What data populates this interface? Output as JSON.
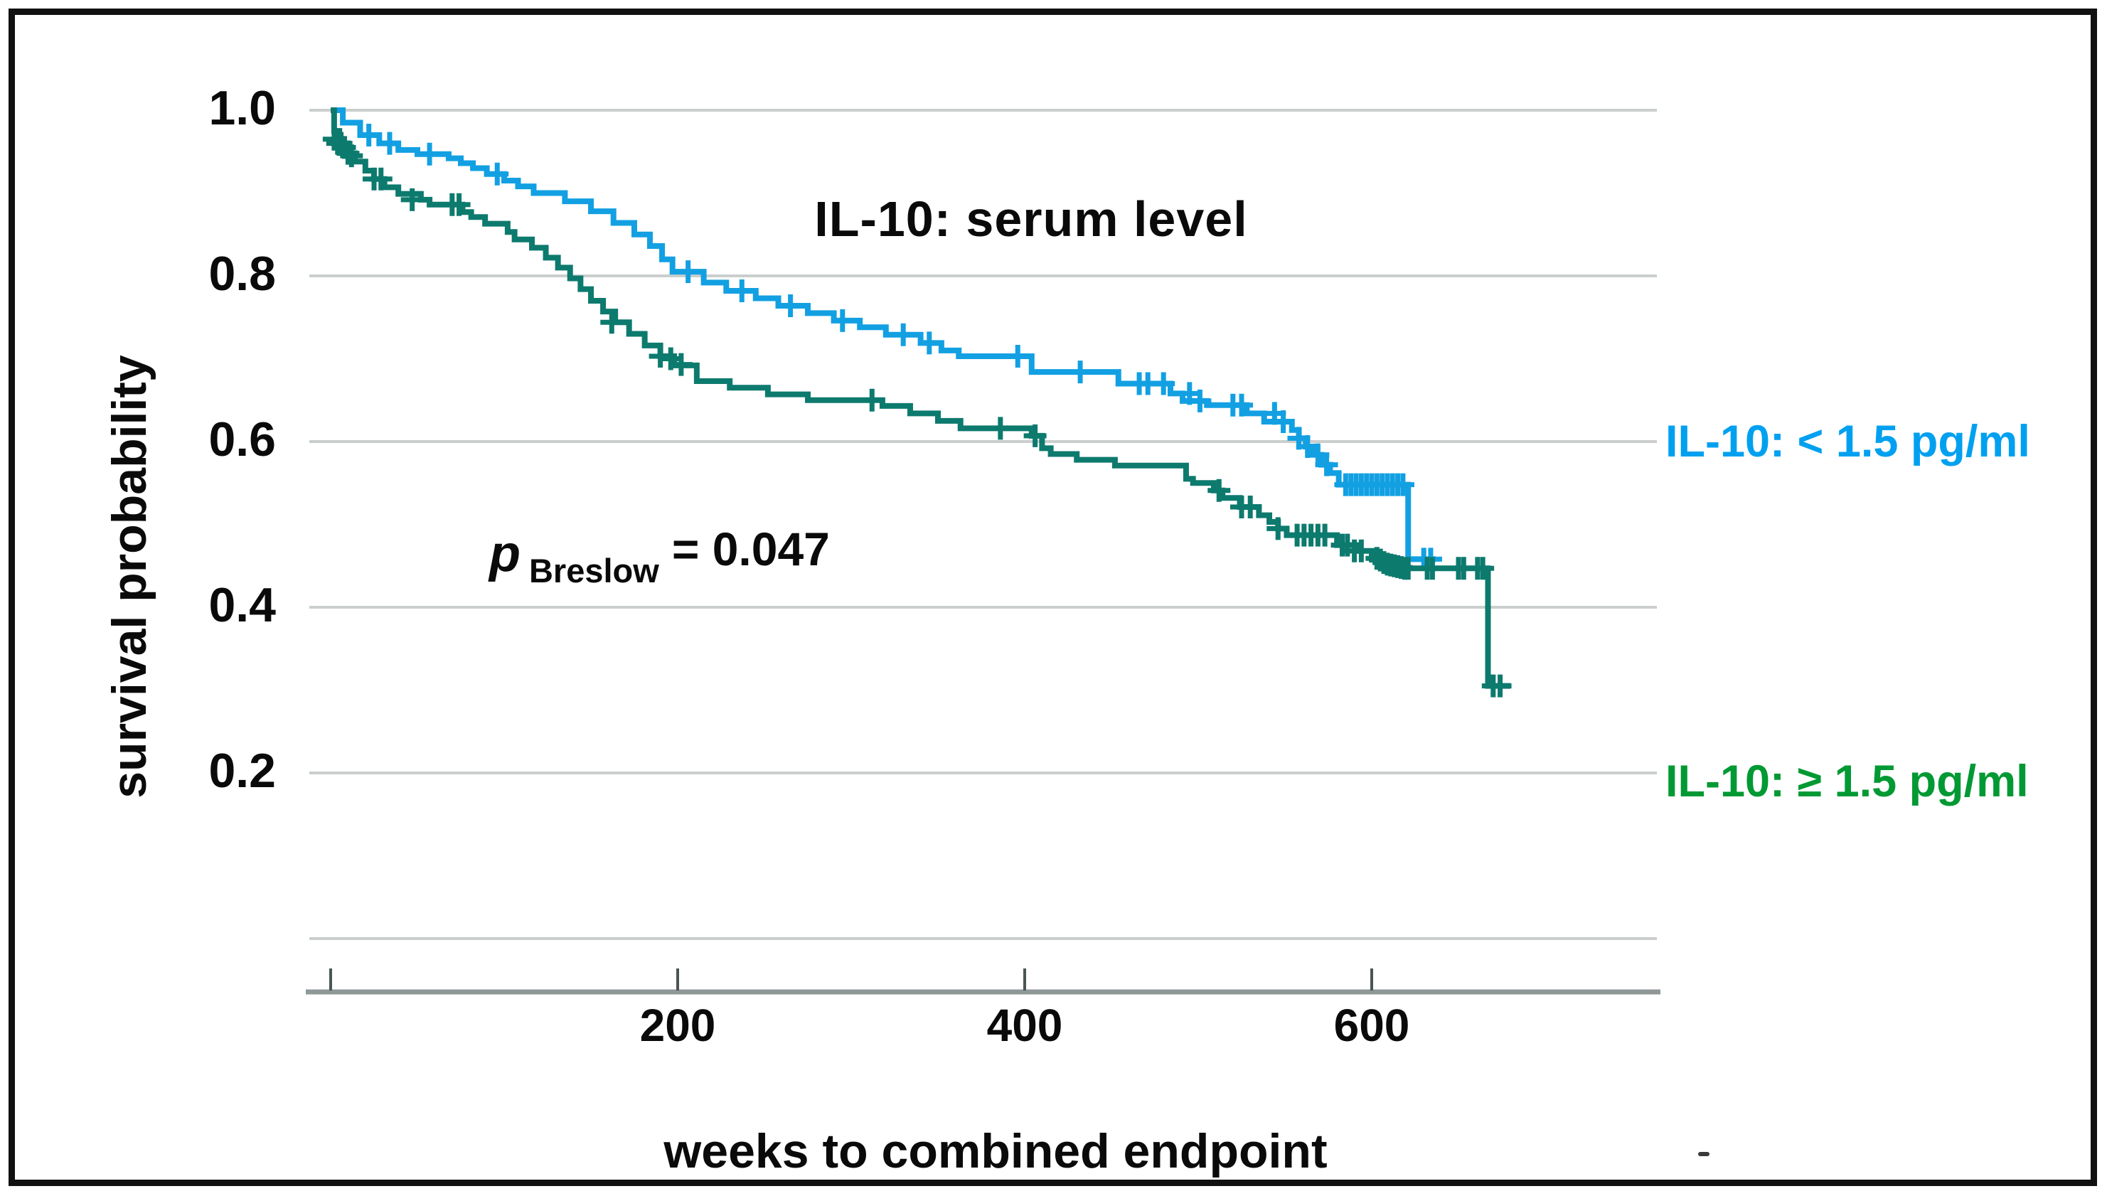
{
  "chart_data": {
    "type": "line",
    "subtype": "kaplan-meier-step",
    "title": "IL-10: serum level",
    "xlabel": "weeks to combined endpoint",
    "ylabel": "survival probability",
    "xlim": [
      0,
      764
    ],
    "ylim": [
      0.0,
      1.05
    ],
    "grid": "horizontal-only",
    "legend_position": "right-outside",
    "x_ticks": [
      {
        "t": 0,
        "label": ""
      },
      {
        "t": 200,
        "label": "200"
      },
      {
        "t": 400,
        "label": "400"
      },
      {
        "t": 600,
        "label": "600"
      }
    ],
    "y_ticks": [
      {
        "v": 1.0,
        "label": "1.0"
      },
      {
        "v": 0.8,
        "label": "0.8"
      },
      {
        "v": 0.6,
        "label": "0.6"
      },
      {
        "v": 0.4,
        "label": "0.4"
      },
      {
        "v": 0.2,
        "label": "0.2"
      },
      {
        "v": 0.0,
        "label": ""
      }
    ],
    "annotation": {
      "p_symbol": "p",
      "p_subscript": "Breslow",
      "p_value": "= 0.047"
    },
    "colors": {
      "grid": "#cacecd",
      "axis": "#8f9797",
      "tick": "#4a5555",
      "text": "#0a0a0a"
    },
    "series": [
      {
        "name": "IL-10: < 1.5 pg/ml",
        "group": "IL-10 below 1.5 pg/ml",
        "color": "#12a0e2",
        "label_color": "#00a0f0",
        "end_week": 637,
        "steps": [
          [
            0,
            1.0
          ],
          [
            7,
            0.985
          ],
          [
            17,
            0.97
          ],
          [
            28,
            0.96
          ],
          [
            39,
            0.952
          ],
          [
            50,
            0.947
          ],
          [
            68,
            0.942
          ],
          [
            75,
            0.936
          ],
          [
            82,
            0.93
          ],
          [
            90,
            0.923
          ],
          [
            100,
            0.915
          ],
          [
            108,
            0.908
          ],
          [
            117,
            0.9
          ],
          [
            135,
            0.89
          ],
          [
            150,
            0.878
          ],
          [
            163,
            0.864
          ],
          [
            175,
            0.85
          ],
          [
            184,
            0.836
          ],
          [
            191,
            0.82
          ],
          [
            197,
            0.805
          ],
          [
            215,
            0.792
          ],
          [
            228,
            0.782
          ],
          [
            245,
            0.773
          ],
          [
            258,
            0.764
          ],
          [
            275,
            0.755
          ],
          [
            290,
            0.746
          ],
          [
            305,
            0.738
          ],
          [
            320,
            0.729
          ],
          [
            340,
            0.719
          ],
          [
            352,
            0.71
          ],
          [
            362,
            0.703
          ],
          [
            404,
            0.684
          ],
          [
            454,
            0.67
          ],
          [
            484,
            0.658
          ],
          [
            491,
            0.649
          ],
          [
            505,
            0.644
          ],
          [
            528,
            0.634
          ],
          [
            538,
            0.624
          ],
          [
            554,
            0.614
          ],
          [
            558,
            0.604
          ],
          [
            562,
            0.594
          ],
          [
            566,
            0.584
          ],
          [
            571,
            0.572
          ],
          [
            576,
            0.562
          ],
          [
            581,
            0.548
          ],
          [
            621,
            0.458
          ]
        ],
        "censors": [
          [
            22,
            0.97
          ],
          [
            34,
            0.96
          ],
          [
            57,
            0.947
          ],
          [
            96,
            0.923
          ],
          [
            206,
            0.805
          ],
          [
            237,
            0.782
          ],
          [
            265,
            0.764
          ],
          [
            295,
            0.746
          ],
          [
            330,
            0.729
          ],
          [
            345,
            0.719
          ],
          [
            396,
            0.703
          ],
          [
            432,
            0.684
          ],
          [
            466,
            0.67
          ],
          [
            471,
            0.67
          ],
          [
            480,
            0.67
          ],
          [
            495,
            0.658
          ],
          [
            501,
            0.649
          ],
          [
            520,
            0.644
          ],
          [
            525,
            0.644
          ],
          [
            544,
            0.634
          ],
          [
            549,
            0.624
          ],
          [
            558,
            0.604
          ],
          [
            563,
            0.594
          ],
          [
            569,
            0.584
          ],
          [
            574,
            0.572
          ],
          [
            585,
            0.548
          ],
          [
            588,
            0.548
          ],
          [
            591,
            0.548
          ],
          [
            594,
            0.548
          ],
          [
            597,
            0.548
          ],
          [
            600,
            0.548
          ],
          [
            603,
            0.548
          ],
          [
            606,
            0.548
          ],
          [
            609,
            0.548
          ],
          [
            612,
            0.548
          ],
          [
            615,
            0.548
          ],
          [
            618,
            0.548
          ],
          [
            630,
            0.458
          ],
          [
            634,
            0.458
          ]
        ]
      },
      {
        "name": "IL-10: ≥ 1.5 pg/ml",
        "group": "IL-10 at or above 1.5 pg/ml",
        "color": "#0d7a6e",
        "label_color": "#009933",
        "end_week": 680,
        "steps": [
          [
            0,
            1.0
          ],
          [
            2,
            0.975
          ],
          [
            5,
            0.96
          ],
          [
            10,
            0.948
          ],
          [
            14,
            0.938
          ],
          [
            20,
            0.927
          ],
          [
            25,
            0.917
          ],
          [
            31,
            0.907
          ],
          [
            39,
            0.899
          ],
          [
            52,
            0.892
          ],
          [
            57,
            0.886
          ],
          [
            76,
            0.877
          ],
          [
            81,
            0.871
          ],
          [
            89,
            0.863
          ],
          [
            102,
            0.853
          ],
          [
            106,
            0.844
          ],
          [
            116,
            0.834
          ],
          [
            124,
            0.822
          ],
          [
            131,
            0.81
          ],
          [
            138,
            0.797
          ],
          [
            144,
            0.784
          ],
          [
            150,
            0.77
          ],
          [
            157,
            0.757
          ],
          [
            164,
            0.744
          ],
          [
            172,
            0.73
          ],
          [
            181,
            0.716
          ],
          [
            190,
            0.703
          ],
          [
            198,
            0.692
          ],
          [
            211,
            0.673
          ],
          [
            230,
            0.665
          ],
          [
            252,
            0.657
          ],
          [
            275,
            0.65
          ],
          [
            318,
            0.643
          ],
          [
            334,
            0.634
          ],
          [
            350,
            0.625
          ],
          [
            363,
            0.616
          ],
          [
            404,
            0.607
          ],
          [
            410,
            0.592
          ],
          [
            415,
            0.585
          ],
          [
            430,
            0.578
          ],
          [
            452,
            0.571
          ],
          [
            493,
            0.555
          ],
          [
            497,
            0.55
          ],
          [
            509,
            0.541
          ],
          [
            514,
            0.532
          ],
          [
            524,
            0.521
          ],
          [
            535,
            0.511
          ],
          [
            541,
            0.503
          ],
          [
            546,
            0.495
          ],
          [
            551,
            0.487
          ],
          [
            580,
            0.475
          ],
          [
            592,
            0.468
          ],
          [
            600,
            0.461
          ],
          [
            604,
            0.458
          ],
          [
            608,
            0.455
          ],
          [
            612,
            0.452
          ],
          [
            616,
            0.449
          ],
          [
            620,
            0.447
          ],
          [
            667,
            0.305
          ]
        ],
        "censors": [
          [
            2,
            0.965
          ],
          [
            4,
            0.96
          ],
          [
            6,
            0.96
          ],
          [
            8,
            0.955
          ],
          [
            10,
            0.948
          ],
          [
            12,
            0.945
          ],
          [
            25,
            0.917
          ],
          [
            29,
            0.917
          ],
          [
            47,
            0.892
          ],
          [
            70,
            0.886
          ],
          [
            74,
            0.886
          ],
          [
            162,
            0.744
          ],
          [
            190,
            0.703
          ],
          [
            196,
            0.7
          ],
          [
            202,
            0.693
          ],
          [
            312,
            0.65
          ],
          [
            386,
            0.616
          ],
          [
            406,
            0.607
          ],
          [
            512,
            0.541
          ],
          [
            525,
            0.521
          ],
          [
            530,
            0.521
          ],
          [
            546,
            0.495
          ],
          [
            557,
            0.487
          ],
          [
            561,
            0.487
          ],
          [
            565,
            0.487
          ],
          [
            569,
            0.487
          ],
          [
            573,
            0.487
          ],
          [
            583,
            0.475
          ],
          [
            586,
            0.475
          ],
          [
            590,
            0.468
          ],
          [
            594,
            0.468
          ],
          [
            603,
            0.459
          ],
          [
            605,
            0.457
          ],
          [
            607,
            0.454
          ],
          [
            609,
            0.452
          ],
          [
            611,
            0.451
          ],
          [
            613,
            0.45
          ],
          [
            615,
            0.449
          ],
          [
            617,
            0.448
          ],
          [
            619,
            0.447
          ],
          [
            621,
            0.447
          ],
          [
            632,
            0.447
          ],
          [
            635,
            0.447
          ],
          [
            650,
            0.447
          ],
          [
            653,
            0.447
          ],
          [
            661,
            0.447
          ],
          [
            664,
            0.447
          ],
          [
            670,
            0.305
          ],
          [
            674,
            0.305
          ]
        ]
      }
    ]
  }
}
